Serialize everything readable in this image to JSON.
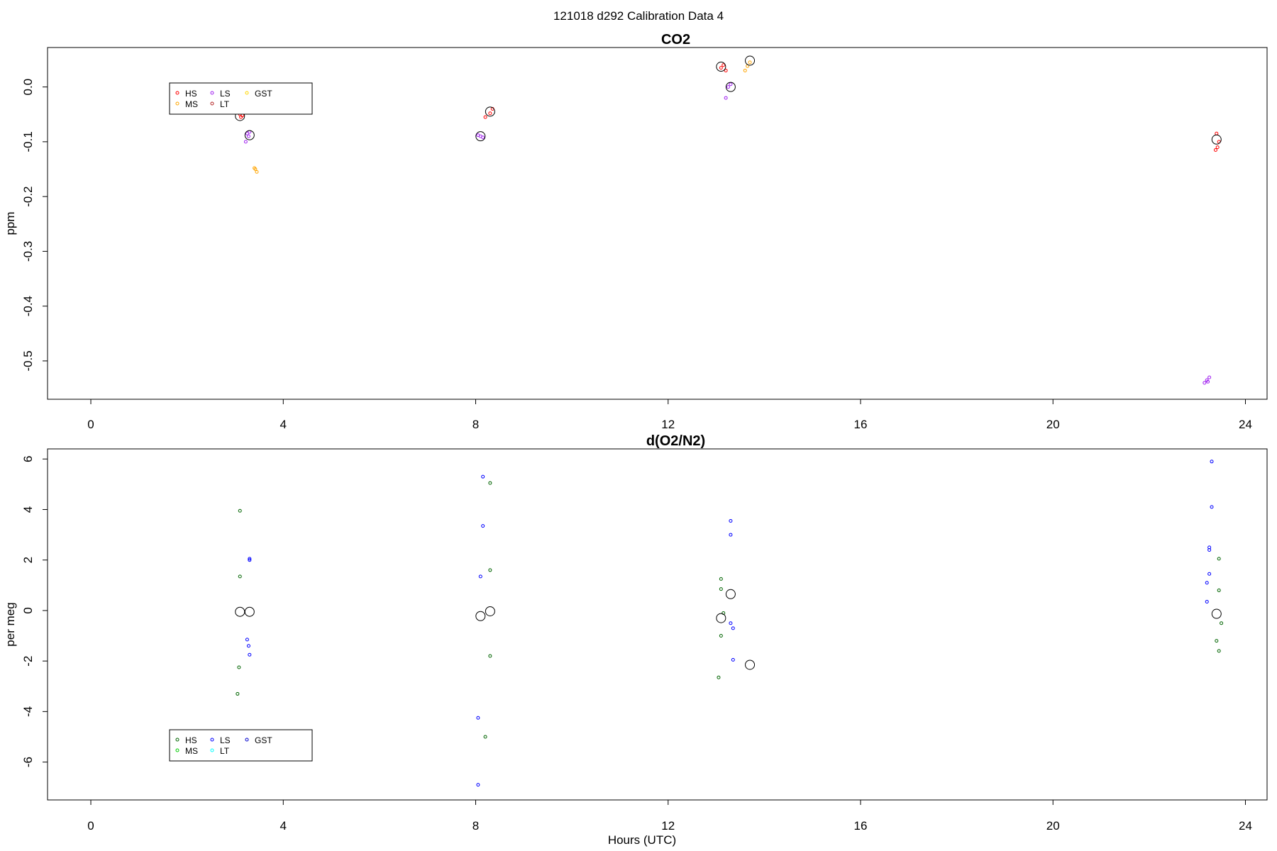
{
  "suptitle": "121018   d292   Calibration Data 4",
  "chart_data": [
    {
      "type": "scatter",
      "title": "CO2",
      "xlabel": "",
      "ylabel": "ppm",
      "xlim": [
        -0.9,
        24.45
      ],
      "ylim": [
        -0.57,
        0.072
      ],
      "xticks": [
        0,
        4,
        8,
        12,
        16,
        20,
        24
      ],
      "yticks": [
        0.0,
        -0.1,
        -0.2,
        -0.3,
        -0.4,
        -0.5
      ],
      "ytick_labels": [
        "0.0",
        "-0.1",
        "-0.2",
        "-0.3",
        "-0.4",
        "-0.5"
      ],
      "legend": {
        "position": "top-left",
        "entries": [
          "HS",
          "MS",
          "LS",
          "LT",
          "GST"
        ],
        "colors": [
          "#ff0000",
          "#ffa500",
          "#a020f0",
          "#b22222",
          "#ffd700"
        ]
      },
      "series": [
        {
          "name": "HS",
          "color": "#ff0000",
          "points": [
            [
              3.1,
              -0.05
            ],
            [
              3.12,
              -0.055
            ],
            [
              3.15,
              -0.052
            ],
            [
              8.2,
              -0.055
            ],
            [
              8.3,
              -0.048
            ],
            [
              8.35,
              -0.04
            ],
            [
              13.1,
              0.035
            ],
            [
              13.15,
              0.04
            ],
            [
              13.2,
              0.03
            ],
            [
              23.4,
              -0.085
            ],
            [
              23.45,
              -0.1
            ],
            [
              23.38,
              -0.115
            ],
            [
              23.42,
              -0.11
            ]
          ]
        },
        {
          "name": "MS",
          "color": "#ffa500",
          "points": [
            [
              3.42,
              -0.15
            ],
            [
              3.45,
              -0.155
            ],
            [
              3.4,
              -0.148
            ],
            [
              13.6,
              0.03
            ],
            [
              13.65,
              0.038
            ],
            [
              13.7,
              0.045
            ]
          ]
        },
        {
          "name": "LS",
          "color": "#a020f0",
          "points": [
            [
              3.25,
              -0.085
            ],
            [
              3.28,
              -0.09
            ],
            [
              3.22,
              -0.1
            ],
            [
              3.3,
              -0.082
            ],
            [
              8.05,
              -0.088
            ],
            [
              8.1,
              -0.09
            ],
            [
              8.15,
              -0.092
            ],
            [
              13.2,
              -0.02
            ],
            [
              13.3,
              0.005
            ],
            [
              13.25,
              0.0
            ],
            [
              23.15,
              -0.54
            ],
            [
              23.2,
              -0.535
            ],
            [
              23.25,
              -0.53
            ],
            [
              23.22,
              -0.538
            ]
          ]
        },
        {
          "name": "LT",
          "color": "#b22222",
          "points": []
        },
        {
          "name": "GST",
          "color": "#ffd700",
          "points": []
        }
      ],
      "means": [
        [
          3.1,
          -0.053
        ],
        [
          3.3,
          -0.088
        ],
        [
          8.1,
          -0.09
        ],
        [
          8.3,
          -0.045
        ],
        [
          13.1,
          0.037
        ],
        [
          13.3,
          0.0
        ],
        [
          13.7,
          0.048
        ],
        [
          23.4,
          -0.096
        ]
      ]
    },
    {
      "type": "scatter",
      "title": "d(O2/N2)",
      "xlabel": "Hours (UTC)",
      "ylabel": "per meg",
      "xlim": [
        -0.9,
        24.45
      ],
      "ylim": [
        -7.5,
        6.4
      ],
      "xticks": [
        0,
        4,
        8,
        12,
        16,
        20,
        24
      ],
      "yticks": [
        6,
        4,
        2,
        0,
        -2,
        -4,
        -6
      ],
      "ytick_labels": [
        "6",
        "4",
        "2",
        "0",
        "-2",
        "-4",
        "-6"
      ],
      "legend": {
        "position": "bottom-left",
        "entries": [
          "HS",
          "MS",
          "LS",
          "LT",
          "GST"
        ],
        "colors": [
          "#006400",
          "#00cc00",
          "#0000ff",
          "#00ffff",
          "#0000cd"
        ]
      },
      "series": [
        {
          "name": "HS",
          "color": "#006400",
          "points": [
            [
              3.1,
              3.95
            ],
            [
              3.1,
              1.35
            ],
            [
              3.08,
              -2.25
            ],
            [
              3.05,
              -3.3
            ],
            [
              8.3,
              5.05
            ],
            [
              8.3,
              1.6
            ],
            [
              8.3,
              -1.8
            ],
            [
              8.2,
              -5.0
            ],
            [
              13.1,
              1.25
            ],
            [
              13.1,
              0.85
            ],
            [
              13.15,
              -0.1
            ],
            [
              13.1,
              -1.0
            ],
            [
              13.05,
              -2.65
            ],
            [
              23.45,
              2.05
            ],
            [
              23.45,
              0.8
            ],
            [
              23.5,
              -0.5
            ],
            [
              23.4,
              -1.2
            ],
            [
              23.45,
              -1.6
            ]
          ]
        },
        {
          "name": "MS",
          "color": "#00cc00",
          "points": []
        },
        {
          "name": "LS",
          "color": "#0000ff",
          "points": [
            [
              3.3,
              2.05
            ],
            [
              3.3,
              2.0
            ],
            [
              3.25,
              -1.15
            ],
            [
              3.28,
              -1.4
            ],
            [
              3.3,
              -1.75
            ],
            [
              8.15,
              5.3
            ],
            [
              8.15,
              3.35
            ],
            [
              8.1,
              1.35
            ],
            [
              8.05,
              -4.25
            ],
            [
              8.05,
              -6.9
            ],
            [
              13.3,
              3.55
            ],
            [
              13.3,
              3.0
            ],
            [
              13.3,
              -0.5
            ],
            [
              13.35,
              -0.7
            ],
            [
              13.35,
              -1.95
            ],
            [
              23.3,
              5.9
            ],
            [
              23.3,
              4.1
            ],
            [
              23.25,
              2.5
            ],
            [
              23.25,
              2.4
            ],
            [
              23.25,
              1.45
            ],
            [
              23.2,
              1.1
            ],
            [
              23.2,
              0.35
            ]
          ]
        },
        {
          "name": "LT",
          "color": "#00ffff",
          "points": []
        },
        {
          "name": "GST",
          "color": "#0000cd",
          "points": []
        }
      ],
      "means": [
        [
          3.1,
          -0.05
        ],
        [
          3.3,
          -0.05
        ],
        [
          8.1,
          -0.22
        ],
        [
          8.3,
          -0.03
        ],
        [
          13.1,
          -0.3
        ],
        [
          13.3,
          0.65
        ],
        [
          13.7,
          -2.15
        ],
        [
          23.4,
          -0.13
        ]
      ]
    }
  ]
}
